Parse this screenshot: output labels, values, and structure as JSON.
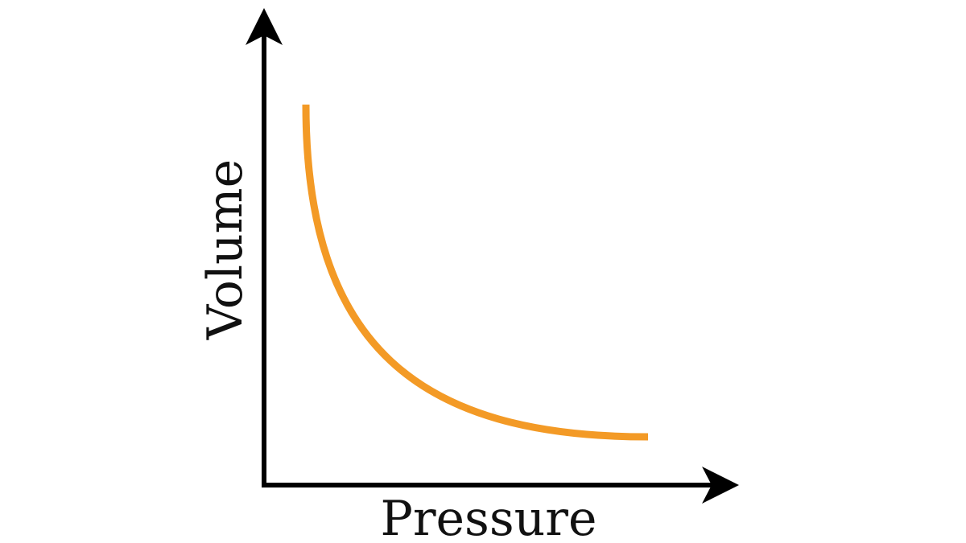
{
  "axes": {
    "x_label": "Pressure",
    "y_label": "Volume"
  }
}
